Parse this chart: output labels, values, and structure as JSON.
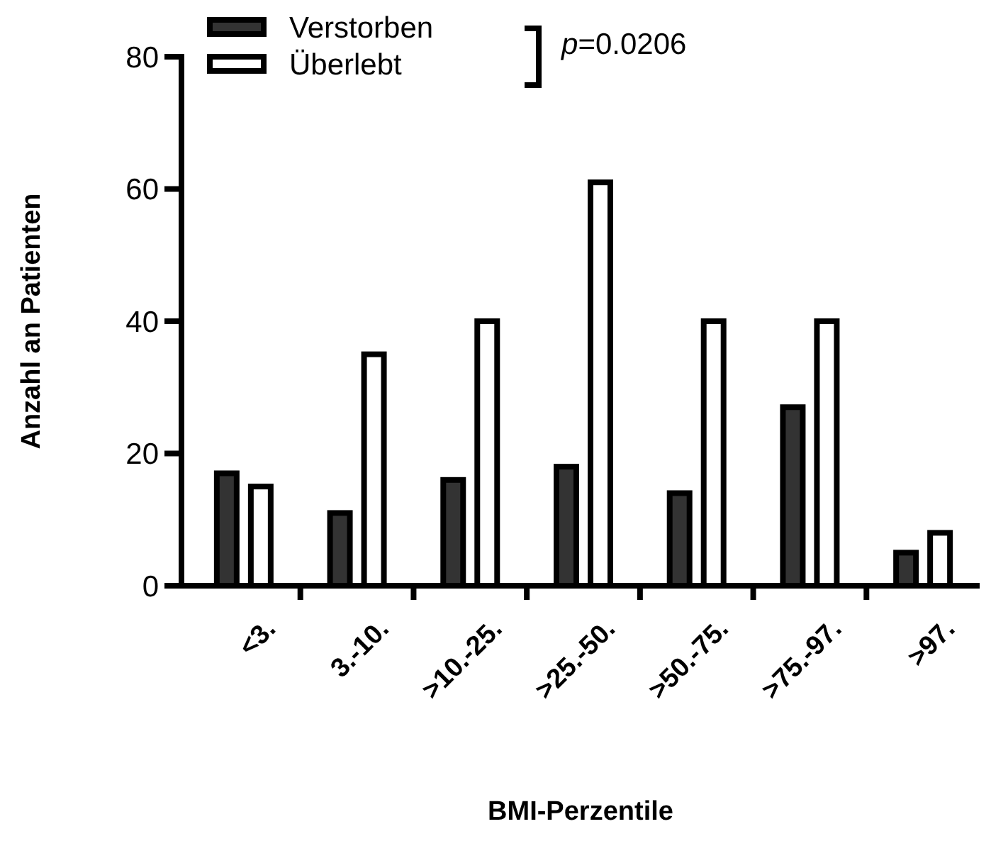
{
  "chart_data": {
    "type": "bar",
    "xlabel": "BMI-Perzentile",
    "ylabel": "Anzahl an Patienten",
    "categories": [
      "<3.",
      "3.-10.",
      ">10.-25.",
      ">25.-50.",
      ">50.-75.",
      ">75.-97.",
      ">97."
    ],
    "series": [
      {
        "name": "Verstorben",
        "color": "#333333",
        "values": [
          17,
          11,
          16,
          18,
          14,
          27,
          5
        ]
      },
      {
        "name": "Überlebt",
        "color": "#ffffff",
        "values": [
          15,
          35,
          40,
          61,
          40,
          40,
          8
        ]
      }
    ],
    "ylim": [
      0,
      80
    ],
    "yticks": [
      0,
      20,
      40,
      60,
      80
    ],
    "legend": "top left",
    "grid": false,
    "annotations": [
      "p=0.0206"
    ]
  }
}
